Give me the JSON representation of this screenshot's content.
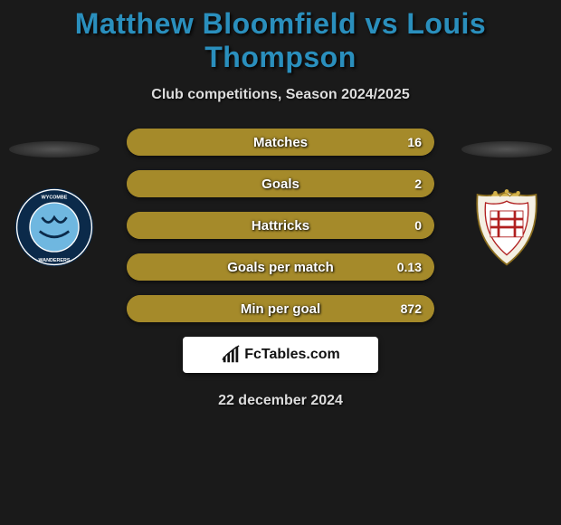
{
  "title": {
    "text": "Matthew Bloomfield vs Louis Thompson",
    "color": "#2a8fbd",
    "fontsize": 32
  },
  "subtitle": {
    "text": "Club competitions, Season 2024/2025",
    "fontsize": 16
  },
  "colors": {
    "background": "#1a1a1a",
    "bar_right": "#a58a2a",
    "bar_left_empty": "#a58a2a",
    "bar_track": "#a58a2a"
  },
  "left_player": {
    "crest": {
      "type": "circle-badge",
      "outer_color": "#0b2a4a",
      "inner_color": "#6fb7e0",
      "ring_color": "#ffffff",
      "text": "WYCOMBE WANDERERS"
    }
  },
  "right_player": {
    "crest": {
      "type": "shield-badge",
      "primary": "#d4b24a",
      "accent_red": "#b02020",
      "accent_white": "#ffffff"
    }
  },
  "stats": [
    {
      "label": "Matches",
      "left_value": "",
      "right_value": "16",
      "left_pct": 0,
      "right_pct": 100
    },
    {
      "label": "Goals",
      "left_value": "",
      "right_value": "2",
      "left_pct": 0,
      "right_pct": 100
    },
    {
      "label": "Hattricks",
      "left_value": "",
      "right_value": "0",
      "left_pct": 0,
      "right_pct": 100
    },
    {
      "label": "Goals per match",
      "left_value": "",
      "right_value": "0.13",
      "left_pct": 0,
      "right_pct": 100
    },
    {
      "label": "Min per goal",
      "left_value": "",
      "right_value": "872",
      "left_pct": 0,
      "right_pct": 100
    }
  ],
  "footer": {
    "logo_text": "FcTables.com",
    "date": "22 december 2024"
  }
}
